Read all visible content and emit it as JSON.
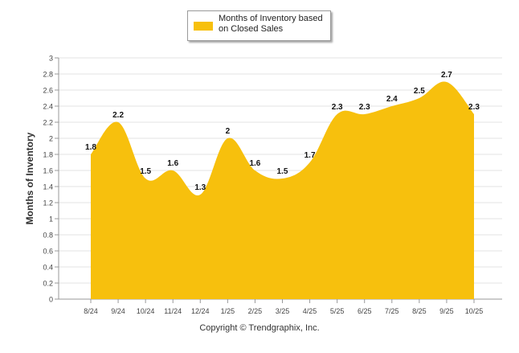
{
  "chart_data": {
    "type": "area",
    "categories": [
      "8/24",
      "9/24",
      "10/24",
      "11/24",
      "12/24",
      "1/25",
      "2/25",
      "3/25",
      "4/25",
      "5/25",
      "6/25",
      "7/25",
      "8/25",
      "9/25",
      "10/25"
    ],
    "series": [
      {
        "name": "Months of Inventory based on Closed Sales",
        "values": [
          1.8,
          2.2,
          1.5,
          1.6,
          1.3,
          2.0,
          1.6,
          1.5,
          1.7,
          2.3,
          2.3,
          2.4,
          2.5,
          2.7,
          2.3
        ],
        "labels": [
          "1.8",
          "2.2",
          "1.5",
          "1.6",
          "1.3",
          "2",
          "1.6",
          "1.5",
          "1.7",
          "2.3",
          "2.3",
          "2.4",
          "2.5",
          "2.7",
          "2.3"
        ],
        "color": "#f7c00d"
      }
    ],
    "ylabel": "Months of Inventory",
    "xlabel": "",
    "ylim": [
      0,
      3
    ],
    "yticks": [
      "0",
      "0.2",
      "0.4",
      "0.6",
      "0.8",
      "1",
      "1.2",
      "1.4",
      "1.6",
      "1.8",
      "2",
      "2.2",
      "2.4",
      "2.6",
      "2.8",
      "3"
    ],
    "grid": true,
    "legend": "top-center"
  },
  "legend": {
    "label_line1": "Months of Inventory based",
    "label_line2": "on Closed Sales"
  },
  "footer": {
    "copyright": "Copyright © Trendgraphix, Inc."
  }
}
